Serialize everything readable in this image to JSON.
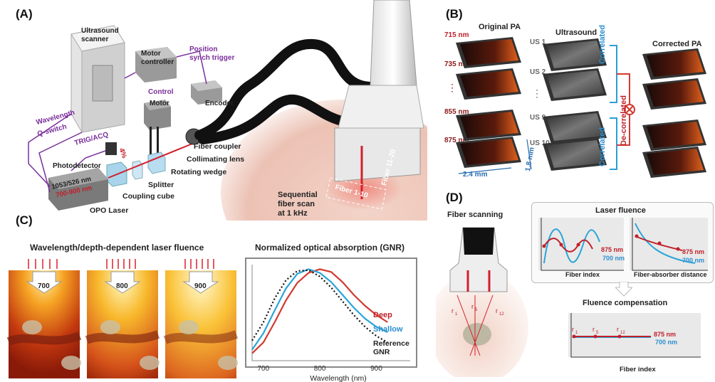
{
  "panels": {
    "A": {
      "letter": "(A)",
      "labels": {
        "ultrasound_scanner": "Ultrasound\nscanner",
        "motor_controller": "Motor\ncontroller",
        "position_synch_trigger": "Position\nsynch trigger",
        "control": "Control",
        "motor": "Motor",
        "encoder": "Encoder",
        "wavelength": "Wavelength",
        "q_switch": "Q-switch",
        "trig_acq": "TRIG/ACQ",
        "photodetector": "Photodetector",
        "four_percent": "4%",
        "fiber_coupler": "Fiber coupler",
        "collimating_lens": "Collimating lens",
        "rotating_wedge": "Rotating wedge",
        "splitter": "Splitter",
        "coupling_cube": "Coupling cube",
        "opo_line1": "1053/526 nm",
        "opo_line2": "700-900 nm",
        "opo_laser": "OPO Laser",
        "fiber_11_20": "Fiber 11-20",
        "fiber_1_10": "Fiber 1-10",
        "sequential": "Sequential\nfiber scan\nat 1 kHz"
      }
    },
    "B": {
      "letter": "(B)",
      "original_pa": "Original PA",
      "ultrasound": "Ultrasound",
      "corrected_pa": "Corrected PA",
      "wavelengths": [
        "715 nm",
        "735 nm",
        "855 nm",
        "875 nm"
      ],
      "us_labels": [
        "US 1",
        "US 2",
        "US 9",
        "US 10"
      ],
      "correlated": "Correlated",
      "decorrelated": "De-correlated",
      "dim_x": "2.4 mm",
      "dim_y": "1.8 mm"
    },
    "C": {
      "letter": "(C)",
      "fluence_title": "Wavelength/depth-dependent laser fluence",
      "fluence_wavelengths": [
        "700",
        "800",
        "900"
      ],
      "absorption_title": "Normalized optical absorption (GNR)",
      "legend": {
        "deep": "Deep",
        "shallow": "Shallow",
        "reference": "Reference\nGNR"
      }
    },
    "D": {
      "letter": "(D)",
      "fiber_scanning": "Fiber scanning",
      "laser_fluence": "Laser fluence",
      "fluence_compensation": "Fluence compensation",
      "fiber_index": "Fiber index",
      "fiber_absorber_distance": "Fiber-absorber distance",
      "r_labels": [
        "r1",
        "r5",
        "r12"
      ],
      "nm875": "875 nm",
      "nm700": "700 nm"
    }
  },
  "chart_data": {
    "type": "line",
    "title": "Normalized optical absorption (GNR)",
    "xlabel": "Wavelength (nm)",
    "ylabel": "",
    "xlim": [
      680,
      960
    ],
    "ylim": [
      0,
      1.05
    ],
    "x_ticks": [
      700,
      800,
      900
    ],
    "series": [
      {
        "name": "Deep",
        "color": "#d23a2f",
        "dash": false,
        "x": [
          680,
          700,
          720,
          740,
          760,
          780,
          800,
          820,
          840,
          860,
          880,
          900,
          920
        ],
        "y": [
          0.08,
          0.2,
          0.42,
          0.66,
          0.85,
          0.96,
          1.0,
          0.97,
          0.86,
          0.72,
          0.6,
          0.5,
          0.42
        ]
      },
      {
        "name": "Shallow",
        "color": "#2aa5d8",
        "dash": false,
        "x": [
          680,
          700,
          720,
          740,
          760,
          780,
          800,
          820,
          840,
          860,
          880,
          900,
          920
        ],
        "y": [
          0.12,
          0.3,
          0.55,
          0.79,
          0.95,
          1.0,
          0.96,
          0.86,
          0.72,
          0.58,
          0.46,
          0.37,
          0.31
        ]
      },
      {
        "name": "Reference GNR",
        "color": "#111111",
        "dash": true,
        "x": [
          680,
          700,
          720,
          740,
          760,
          780,
          800,
          820,
          840,
          860,
          880,
          900,
          920
        ],
        "y": [
          0.22,
          0.42,
          0.68,
          0.88,
          0.98,
          0.99,
          0.92,
          0.8,
          0.65,
          0.5,
          0.37,
          0.27,
          0.2
        ]
      }
    ]
  }
}
